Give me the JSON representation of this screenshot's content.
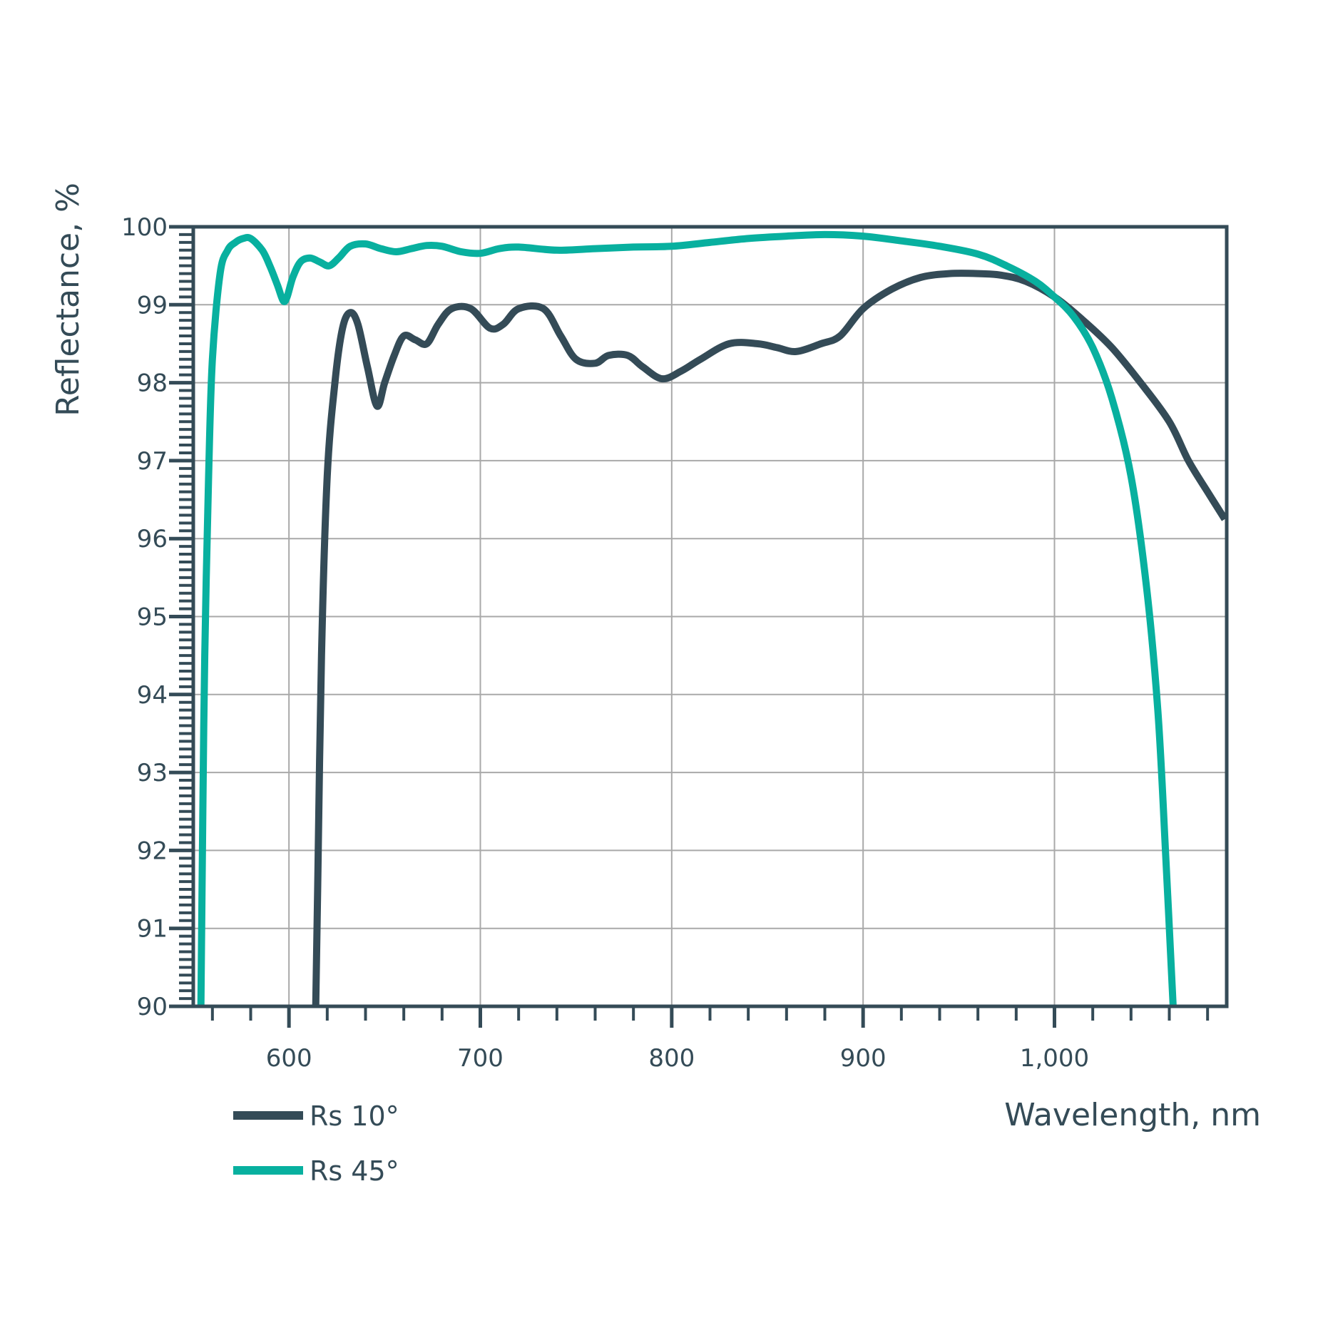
{
  "chart_data": {
    "type": "line",
    "xlabel": "Wavelength, nm",
    "ylabel": "Reflectance, %",
    "xlim": [
      550,
      1090
    ],
    "ylim": [
      90,
      100
    ],
    "x_ticks": [
      {
        "value": 600,
        "label": "600"
      },
      {
        "value": 700,
        "label": "700"
      },
      {
        "value": 800,
        "label": "800"
      },
      {
        "value": 900,
        "label": "900"
      },
      {
        "value": 1000,
        "label": "1,000"
      }
    ],
    "x_minor_step": 20,
    "y_ticks": [
      {
        "value": 90,
        "label": "90"
      },
      {
        "value": 91,
        "label": "91"
      },
      {
        "value": 92,
        "label": "92"
      },
      {
        "value": 93,
        "label": "93"
      },
      {
        "value": 94,
        "label": "94"
      },
      {
        "value": 95,
        "label": "95"
      },
      {
        "value": 96,
        "label": "96"
      },
      {
        "value": 97,
        "label": "97"
      },
      {
        "value": 98,
        "label": "98"
      },
      {
        "value": 99,
        "label": "99"
      },
      {
        "value": 100,
        "label": "100"
      }
    ],
    "y_minor_step": 0.1,
    "grid": true,
    "legend_position": "bottom-left",
    "series": [
      {
        "name": "Rs 10°",
        "color": "#344b57",
        "x": [
          614,
          615,
          617,
          620,
          624,
          628,
          632,
          636,
          641,
          646,
          650,
          655,
          660,
          666,
          672,
          678,
          685,
          695,
          705,
          712,
          720,
          733,
          742,
          750,
          760,
          767,
          777,
          785,
          795,
          805,
          815,
          830,
          845,
          855,
          865,
          878,
          888,
          900,
          915,
          930,
          945,
          960,
          972,
          985,
          1000,
          1015,
          1030,
          1045,
          1060,
          1070,
          1080,
          1089
        ],
        "values": [
          90.0,
          91.5,
          94.5,
          96.8,
          98.0,
          98.7,
          98.9,
          98.75,
          98.2,
          97.7,
          98.0,
          98.35,
          98.6,
          98.55,
          98.5,
          98.75,
          98.95,
          98.95,
          98.7,
          98.75,
          98.95,
          98.95,
          98.6,
          98.3,
          98.25,
          98.35,
          98.35,
          98.2,
          98.05,
          98.15,
          98.3,
          98.5,
          98.5,
          98.45,
          98.4,
          98.5,
          98.6,
          98.95,
          99.2,
          99.35,
          99.4,
          99.4,
          99.38,
          99.3,
          99.1,
          98.8,
          98.45,
          98.0,
          97.5,
          97.0,
          96.6,
          96.25
        ]
      },
      {
        "name": "Rs 45°",
        "color": "#08b09f",
        "x": [
          554,
          555,
          556,
          558,
          560,
          564,
          568,
          572,
          576,
          580,
          586,
          590,
          594,
          597,
          599,
          602,
          606,
          611,
          616,
          621,
          626,
          632,
          640,
          648,
          656,
          664,
          672,
          680,
          690,
          700,
          710,
          720,
          740,
          760,
          780,
          800,
          820,
          840,
          860,
          880,
          900,
          920,
          940,
          960,
          975,
          990,
          1000,
          1010,
          1020,
          1030,
          1040,
          1048,
          1054,
          1058,
          1062
        ],
        "values": [
          90.0,
          92.5,
          94.5,
          96.8,
          98.3,
          99.4,
          99.7,
          99.8,
          99.85,
          99.85,
          99.7,
          99.5,
          99.25,
          99.05,
          99.1,
          99.35,
          99.55,
          99.6,
          99.55,
          99.5,
          99.6,
          99.75,
          99.78,
          99.72,
          99.68,
          99.72,
          99.76,
          99.75,
          99.68,
          99.66,
          99.72,
          99.74,
          99.7,
          99.72,
          99.74,
          99.75,
          99.8,
          99.85,
          99.88,
          99.9,
          99.88,
          99.82,
          99.75,
          99.65,
          99.5,
          99.3,
          99.1,
          98.85,
          98.45,
          97.8,
          96.8,
          95.4,
          93.8,
          92.0,
          90.0
        ]
      }
    ]
  }
}
